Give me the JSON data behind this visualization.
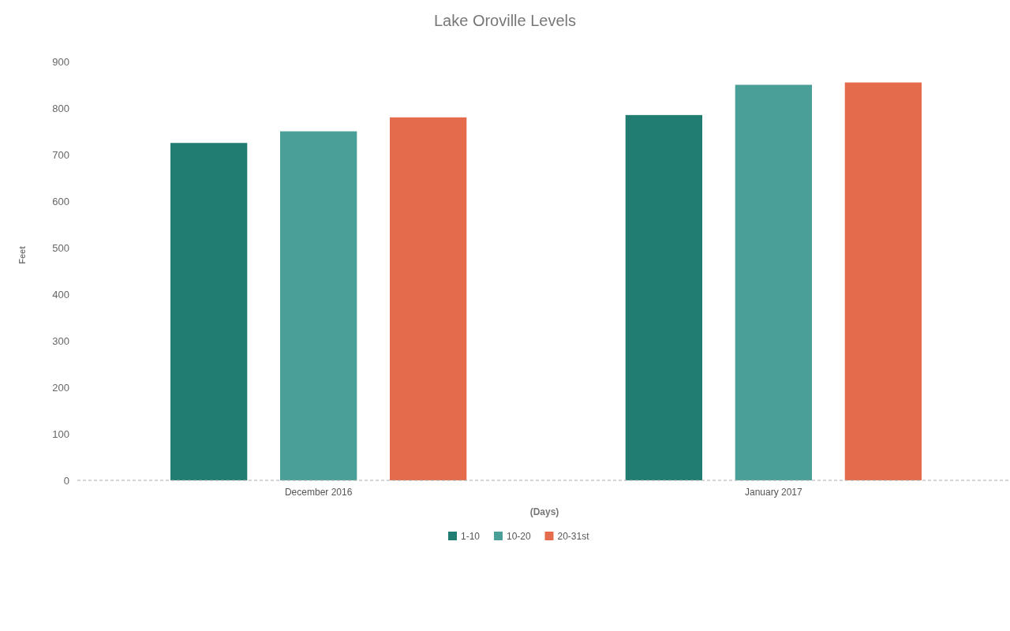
{
  "chart_data": {
    "type": "bar",
    "title": "Lake Oroville Levels",
    "xlabel": "(Days)",
    "ylabel": "Feet",
    "categories": [
      "December 2016",
      "January 2017"
    ],
    "series": [
      {
        "name": "1-10",
        "color": "#217c72",
        "values": [
          725,
          785
        ]
      },
      {
        "name": "10-20",
        "color": "#4aa098",
        "values": [
          750,
          850
        ]
      },
      {
        "name": "20-31st",
        "color": "#e56b4d",
        "values": [
          780,
          855
        ]
      }
    ],
    "ylim": [
      0,
      900
    ],
    "yticks": [
      0,
      100,
      200,
      300,
      400,
      500,
      600,
      700,
      800,
      900
    ],
    "grid": false,
    "legend": "bottom"
  }
}
